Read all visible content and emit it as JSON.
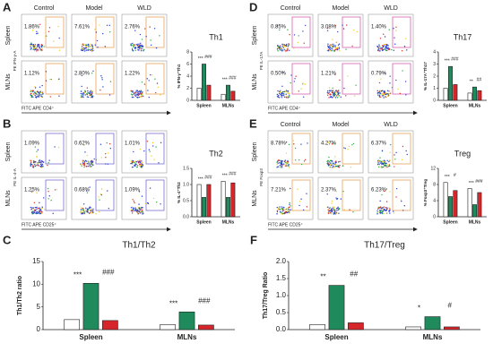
{
  "flow_panels": [
    {
      "letter": "A",
      "columns": [
        "Control",
        "Model",
        "WLD"
      ],
      "rows": [
        "Spleen",
        "MLNs"
      ],
      "percent": [
        [
          "1.86%",
          "7.61%",
          "2.76%"
        ],
        [
          "1.12%",
          "2.80%",
          "1.22%"
        ]
      ],
      "x_label": "FITC APE CD4⁺",
      "y_label": "PE IFN-γ-A",
      "gate_color": "#e8a35a"
    },
    {
      "letter": "B",
      "rows": [
        "Spleen",
        "MLNs"
      ],
      "percent": [
        [
          "1.09%",
          "0.62%",
          "1.01%"
        ],
        [
          "1.25%",
          "0.68%",
          "1.09%"
        ]
      ],
      "x_label": "FITC APE CD25⁺",
      "y_label": "PE IL-4-A",
      "gate_color": "#7b6fd0"
    },
    {
      "letter": "D",
      "columns": [
        "Control",
        "Model",
        "WLD"
      ],
      "rows": [
        "Spleen",
        "MLNs"
      ],
      "percent": [
        [
          "0.85%",
          "3.08%",
          "1.40%"
        ],
        [
          "0.50%",
          "1.21%",
          "0.79%"
        ]
      ],
      "x_label": "FITC APE CD4⁺",
      "y_label": "PE IL-17A",
      "gate_color": "#d860b0"
    },
    {
      "letter": "E",
      "columns": [
        "Control",
        "Model",
        "WLD"
      ],
      "rows": [
        "Spleen",
        "MLNs"
      ],
      "percent": [
        [
          "8.78%",
          "4.27%",
          "6.37%"
        ],
        [
          "7.21%",
          "2.37%",
          "6.23%"
        ]
      ],
      "x_label": "FITC APE CD25⁺",
      "y_label": "PE Foxp3",
      "gate_color": "#e8a35a"
    }
  ],
  "chart_letters": [
    "C",
    "F"
  ],
  "chart_data": [
    {
      "type": "bar",
      "title": "Th1",
      "y_label": "% IFN-γ⁺Th1",
      "categories": [
        "Spleen",
        "MLNs"
      ],
      "series": [
        {
          "color": "#ffffff",
          "values": [
            2,
            1
          ]
        },
        {
          "color": "#1f8a5c",
          "values": [
            6,
            2.5
          ]
        },
        {
          "color": "#d7262b",
          "values": [
            2.5,
            1.5
          ]
        }
      ],
      "ylim": [
        0,
        8
      ],
      "yticks": [
        0,
        2,
        4,
        6,
        8
      ],
      "annotations": [
        [
          "***",
          "###"
        ],
        [
          "***",
          "###"
        ]
      ]
    },
    {
      "type": "bar",
      "title": "Th2",
      "y_label": "% IL-4⁺Th2",
      "categories": [
        "Spleen",
        "MLNs"
      ],
      "series": [
        {
          "color": "#ffffff",
          "values": [
            1,
            1.1
          ]
        },
        {
          "color": "#1f8a5c",
          "values": [
            0.6,
            0.6
          ]
        },
        {
          "color": "#d7262b",
          "values": [
            1,
            1.05
          ]
        }
      ],
      "ylim": [
        0,
        1.5
      ],
      "yticks": [
        {
          "value": 0,
          "label": "0.0"
        },
        0.5,
        {
          "value": 1,
          "label": "1.0"
        },
        1.5
      ],
      "annotations": [
        [
          "***",
          "###"
        ],
        [
          "***",
          "###"
        ]
      ]
    },
    {
      "type": "bar",
      "title": "Th1/Th2",
      "y_label": "Th1/Th2 ratio",
      "categories": [
        "Spleen",
        "MLNs"
      ],
      "series": [
        {
          "color": "#ffffff",
          "values": [
            2.2,
            1.1
          ]
        },
        {
          "color": "#1f8a5c",
          "values": [
            10.2,
            3.9
          ]
        },
        {
          "color": "#d7262b",
          "values": [
            2,
            1
          ]
        }
      ],
      "ylim": [
        0,
        15
      ],
      "yticks": [
        0,
        5,
        10,
        15
      ],
      "annotations": [
        [
          "***",
          "###"
        ],
        [
          "***",
          "###"
        ]
      ]
    },
    {
      "type": "bar",
      "title": "Th17",
      "y_label": "% IL-17A⁺Th17",
      "categories": [
        "Spleen",
        "MLNs"
      ],
      "series": [
        {
          "color": "#ffffff",
          "values": [
            1,
            0.6
          ]
        },
        {
          "color": "#1f8a5c",
          "values": [
            2.8,
            1.1
          ]
        },
        {
          "color": "#d7262b",
          "values": [
            1.3,
            0.8
          ]
        }
      ],
      "ylim": [
        0,
        4
      ],
      "yticks": [
        0,
        1,
        2,
        3,
        4
      ],
      "annotations": [
        [
          "***",
          "###"
        ],
        [
          "**",
          "##"
        ]
      ]
    },
    {
      "type": "bar",
      "title": "Treg",
      "y_label": "% Foxp3⁺Treg",
      "categories": [
        "Spleen",
        "MLNs"
      ],
      "series": [
        {
          "color": "#ffffff",
          "values": [
            8.5,
            7
          ]
        },
        {
          "color": "#1f8a5c",
          "values": [
            5,
            3
          ]
        },
        {
          "color": "#d7262b",
          "values": [
            6.5,
            6
          ]
        }
      ],
      "ylim": [
        0,
        12
      ],
      "yticks": [
        0,
        4,
        8,
        12
      ],
      "annotations": [
        [
          "***",
          "#"
        ],
        [
          "***",
          "###"
        ]
      ]
    },
    {
      "type": "bar",
      "title": "Th17/Treg",
      "y_label": "Th17/Treg Ratio",
      "categories": [
        "Spleen",
        "MLNs"
      ],
      "series": [
        {
          "color": "#ffffff",
          "values": [
            0.15,
            0.08
          ]
        },
        {
          "color": "#1f8a5c",
          "values": [
            1.3,
            0.38
          ]
        },
        {
          "color": "#d7262b",
          "values": [
            0.2,
            0.08
          ]
        }
      ],
      "ylim": [
        0,
        2
      ],
      "yticks": [
        {
          "value": 0,
          "label": "0.0"
        },
        0.5,
        {
          "value": 1,
          "label": "1.0"
        },
        1.5,
        {
          "value": 2,
          "label": "2.0"
        }
      ],
      "annotations": [
        [
          "**",
          "##"
        ],
        [
          "*",
          "#"
        ]
      ]
    }
  ]
}
